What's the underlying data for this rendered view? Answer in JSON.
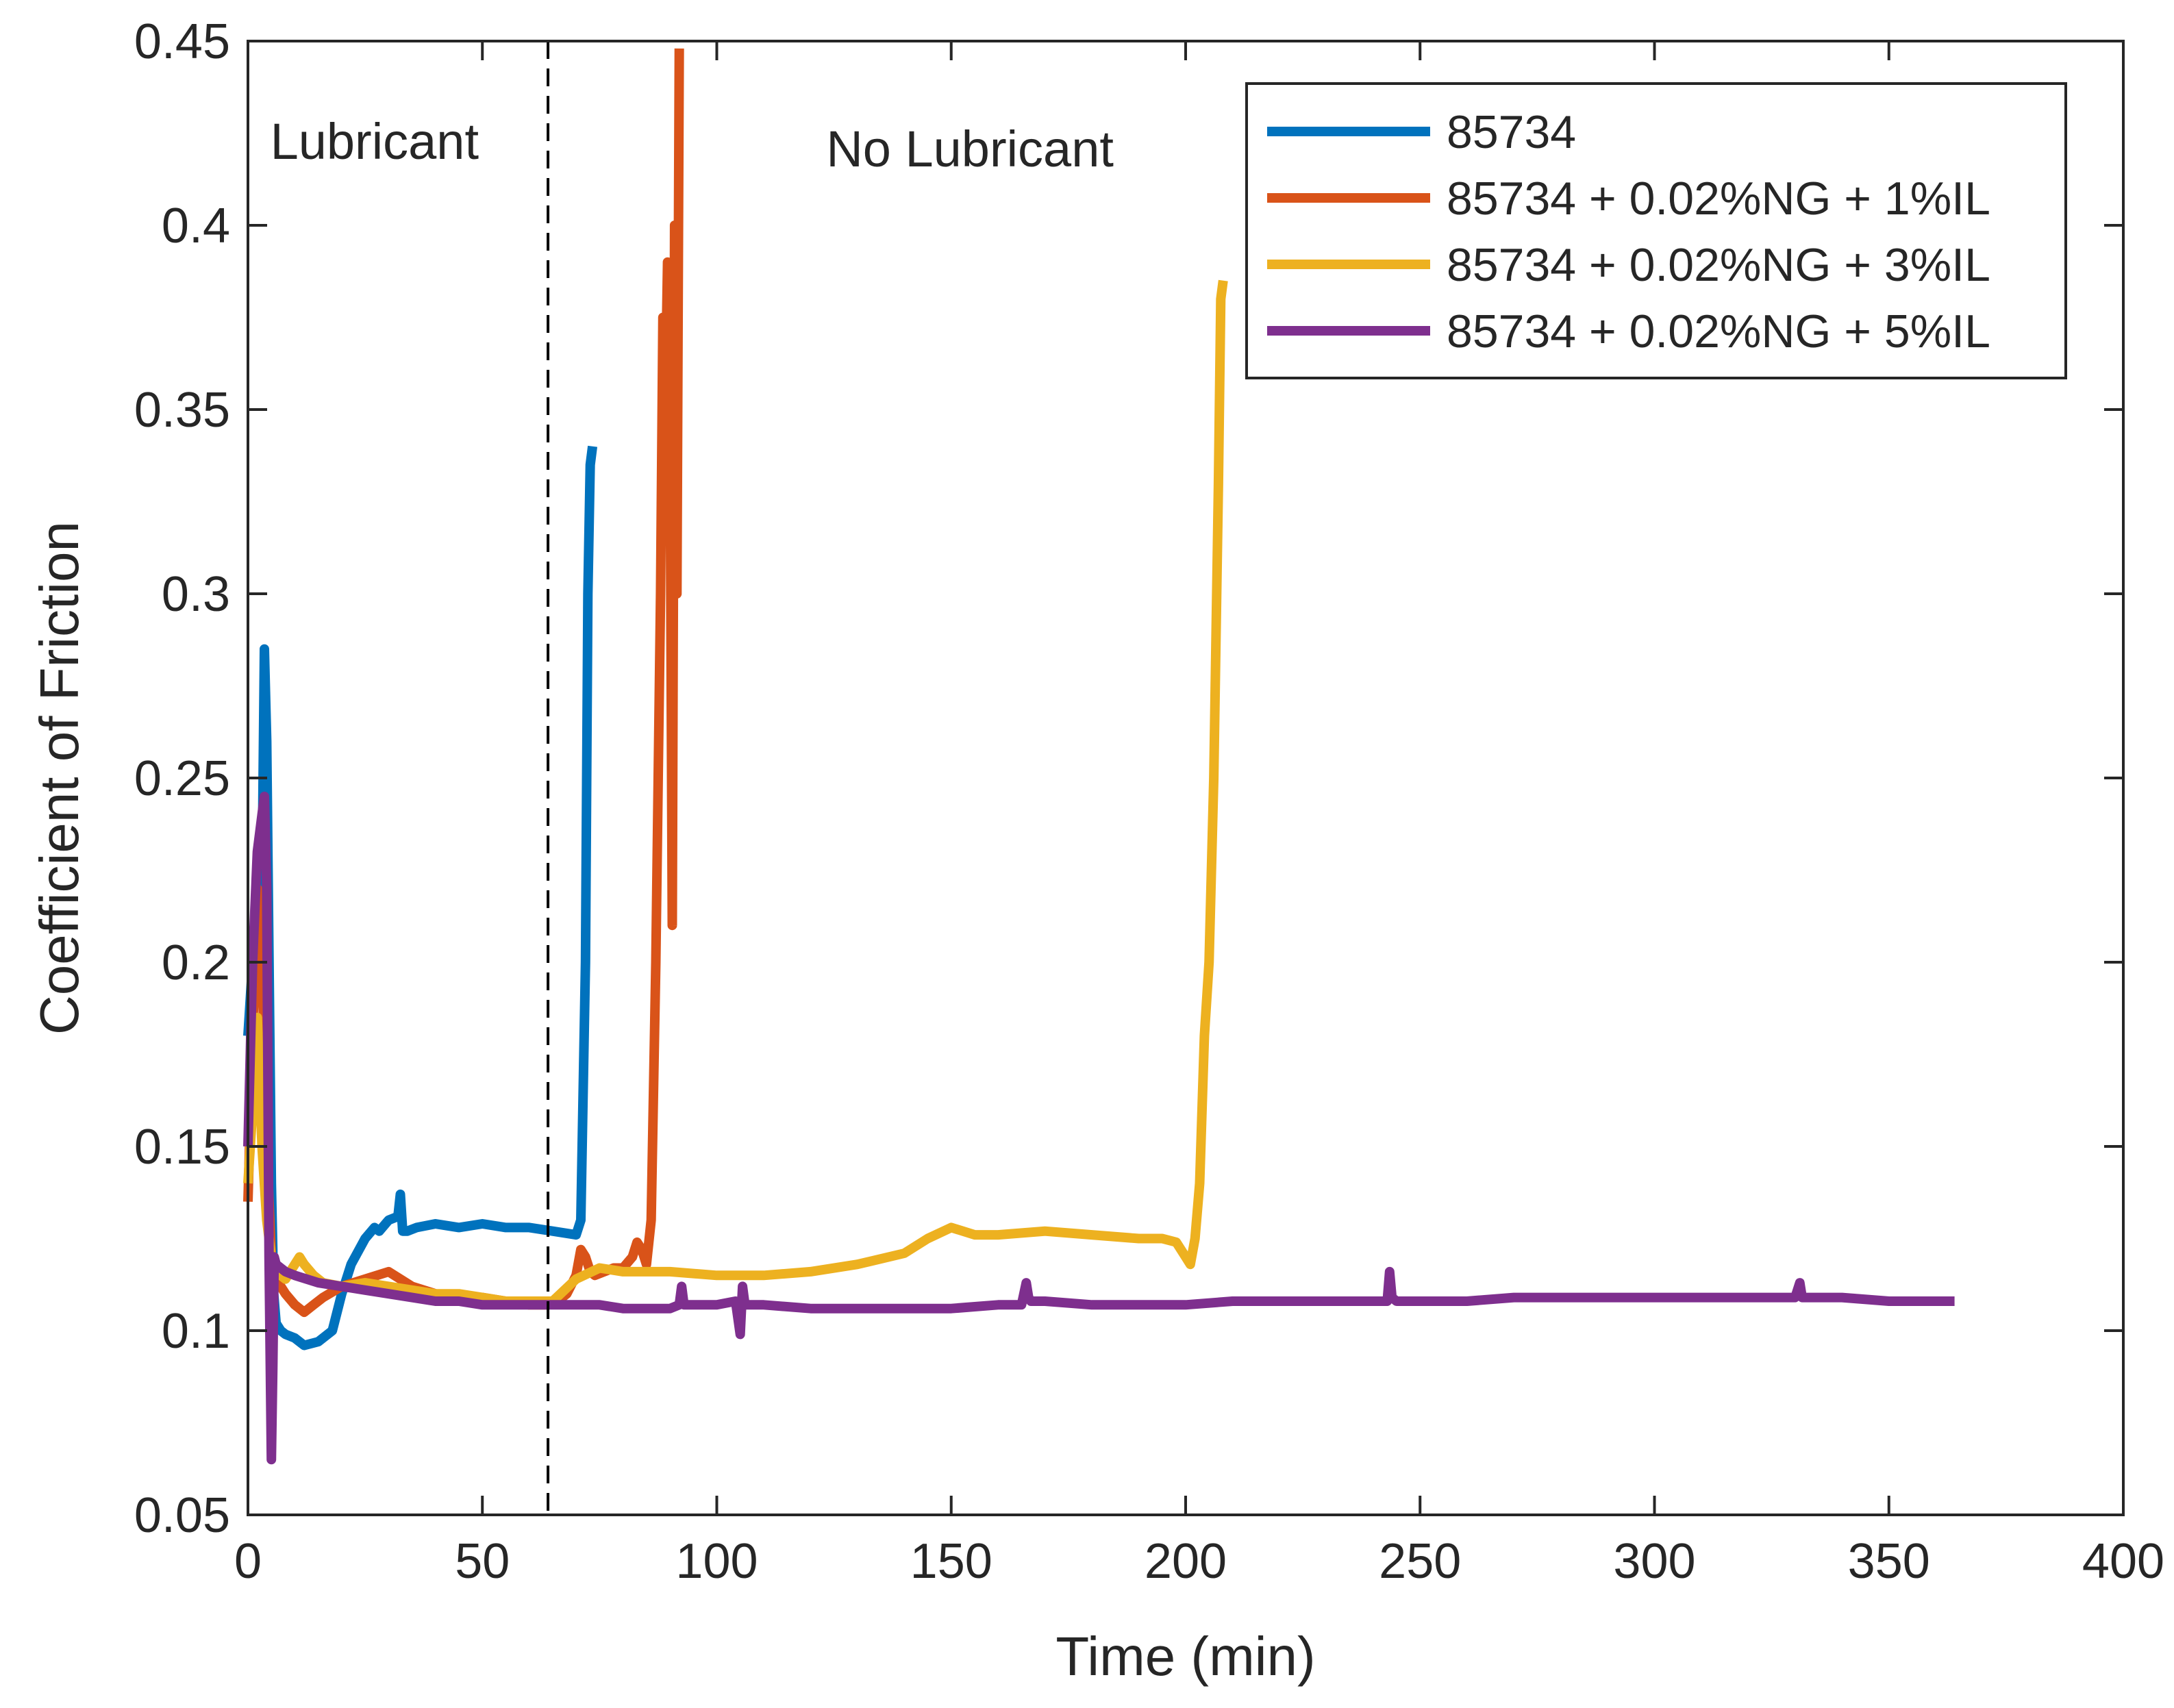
{
  "chart_data": {
    "type": "line",
    "title": "",
    "xlabel": "Time (min)",
    "ylabel": "Coefficient of Friction",
    "xlim": [
      0,
      400
    ],
    "ylim": [
      0.05,
      0.45
    ],
    "xticks": [
      0,
      50,
      100,
      150,
      200,
      250,
      300,
      350,
      400
    ],
    "yticks": [
      0.05,
      0.1,
      0.15,
      0.2,
      0.25,
      0.3,
      0.35,
      0.4,
      0.45
    ],
    "xtick_labels": [
      "0",
      "50",
      "100",
      "150",
      "200",
      "250",
      "300",
      "350",
      "400"
    ],
    "ytick_labels": [
      "0.05",
      "0.1",
      "0.15",
      "0.2",
      "0.25",
      "0.3",
      "0.35",
      "0.4",
      "0.45"
    ],
    "grid": false,
    "legend_position": "top-right",
    "divider": {
      "x": 64,
      "style": "dashed"
    },
    "annotations": [
      {
        "text": "Lubricant",
        "x": 27,
        "y": 0.418
      },
      {
        "text": "No Lubricant",
        "x": 154,
        "y": 0.416
      }
    ],
    "series": [
      {
        "name": "85734",
        "color": "#0072BD",
        "x": [
          0,
          1,
          2,
          3,
          3.5,
          4,
          4.5,
          5,
          5.5,
          6,
          7,
          8,
          10,
          12,
          15,
          18,
          20,
          22,
          25,
          27,
          28,
          30,
          32,
          32.5,
          33,
          34,
          36,
          40,
          45,
          50,
          55,
          60,
          65,
          70,
          71,
          72,
          72.5,
          73,
          73.5
        ],
        "y": [
          0.18,
          0.2,
          0.19,
          0.22,
          0.285,
          0.26,
          0.2,
          0.14,
          0.11,
          0.102,
          0.1,
          0.099,
          0.098,
          0.096,
          0.097,
          0.1,
          0.11,
          0.118,
          0.125,
          0.128,
          0.127,
          0.13,
          0.131,
          0.137,
          0.127,
          0.127,
          0.128,
          0.129,
          0.128,
          0.129,
          0.128,
          0.128,
          0.127,
          0.126,
          0.13,
          0.2,
          0.3,
          0.335,
          0.34
        ]
      },
      {
        "name": "85734 + 0.02%NG + 1%IL",
        "color": "#D95319",
        "x": [
          0,
          1,
          2,
          3,
          4,
          5,
          6,
          7,
          8,
          10,
          12,
          14,
          16,
          20,
          25,
          30,
          35,
          40,
          45,
          50,
          55,
          60,
          64,
          66,
          68,
          70,
          71,
          72,
          73,
          74,
          76,
          78,
          80,
          82,
          83,
          84,
          85,
          86,
          87,
          88,
          88.5,
          89,
          89.5,
          90,
          90.5,
          91,
          91.5,
          92
        ],
        "y": [
          0.135,
          0.18,
          0.22,
          0.2,
          0.15,
          0.12,
          0.113,
          0.112,
          0.11,
          0.107,
          0.105,
          0.107,
          0.109,
          0.112,
          0.114,
          0.116,
          0.112,
          0.11,
          0.108,
          0.109,
          0.108,
          0.107,
          0.107,
          0.108,
          0.11,
          0.115,
          0.122,
          0.12,
          0.116,
          0.115,
          0.116,
          0.117,
          0.117,
          0.12,
          0.124,
          0.122,
          0.118,
          0.13,
          0.2,
          0.3,
          0.375,
          0.35,
          0.39,
          0.35,
          0.21,
          0.4,
          0.3,
          0.448
        ]
      },
      {
        "name": "85734 + 0.02%NG + 3%IL",
        "color": "#EDB120",
        "x": [
          0,
          1,
          2,
          3,
          4,
          5,
          6,
          8,
          10,
          11,
          12,
          14,
          16,
          20,
          25,
          30,
          35,
          40,
          45,
          50,
          55,
          60,
          65,
          70,
          75,
          80,
          90,
          100,
          110,
          120,
          130,
          140,
          145,
          150,
          155,
          160,
          170,
          180,
          190,
          195,
          198,
          200,
          201,
          202,
          203,
          204,
          205,
          206,
          207,
          207.5,
          208
        ],
        "y": [
          0.14,
          0.16,
          0.185,
          0.15,
          0.13,
          0.12,
          0.116,
          0.114,
          0.118,
          0.12,
          0.118,
          0.115,
          0.113,
          0.112,
          0.113,
          0.112,
          0.111,
          0.11,
          0.11,
          0.109,
          0.108,
          0.108,
          0.108,
          0.114,
          0.117,
          0.116,
          0.116,
          0.115,
          0.115,
          0.116,
          0.118,
          0.121,
          0.125,
          0.128,
          0.126,
          0.126,
          0.127,
          0.126,
          0.125,
          0.125,
          0.124,
          0.12,
          0.118,
          0.125,
          0.14,
          0.18,
          0.2,
          0.25,
          0.33,
          0.38,
          0.385
        ]
      },
      {
        "name": "85734 + 0.02%NG + 5%IL",
        "color": "#7E2F8E",
        "x": [
          0,
          1,
          2,
          3,
          3.5,
          4,
          4.5,
          5,
          5.3,
          5.6,
          6,
          7,
          8,
          10,
          15,
          20,
          25,
          30,
          35,
          40,
          45,
          50,
          55,
          60,
          65,
          70,
          75,
          80,
          85,
          90,
          92,
          92.5,
          93,
          95,
          100,
          104,
          105,
          105.5,
          106,
          110,
          120,
          130,
          140,
          150,
          160,
          165,
          166,
          166.5,
          167,
          170,
          180,
          190,
          200,
          210,
          220,
          230,
          240,
          243,
          243.5,
          244,
          245,
          250,
          260,
          270,
          280,
          290,
          300,
          310,
          320,
          330,
          331,
          331.5,
          332,
          340,
          350,
          360,
          364
        ],
        "y": [
          0.15,
          0.2,
          0.23,
          0.24,
          0.245,
          0.22,
          0.12,
          0.065,
          0.09,
          0.12,
          0.118,
          0.117,
          0.116,
          0.115,
          0.113,
          0.112,
          0.111,
          0.11,
          0.109,
          0.108,
          0.108,
          0.107,
          0.107,
          0.107,
          0.107,
          0.107,
          0.107,
          0.106,
          0.106,
          0.106,
          0.107,
          0.112,
          0.107,
          0.107,
          0.107,
          0.108,
          0.099,
          0.112,
          0.107,
          0.107,
          0.106,
          0.106,
          0.106,
          0.106,
          0.107,
          0.107,
          0.113,
          0.109,
          0.108,
          0.108,
          0.107,
          0.107,
          0.107,
          0.108,
          0.108,
          0.108,
          0.108,
          0.108,
          0.116,
          0.109,
          0.108,
          0.108,
          0.108,
          0.109,
          0.109,
          0.109,
          0.109,
          0.109,
          0.109,
          0.109,
          0.113,
          0.109,
          0.109,
          0.109,
          0.108,
          0.108,
          0.108
        ]
      }
    ]
  }
}
